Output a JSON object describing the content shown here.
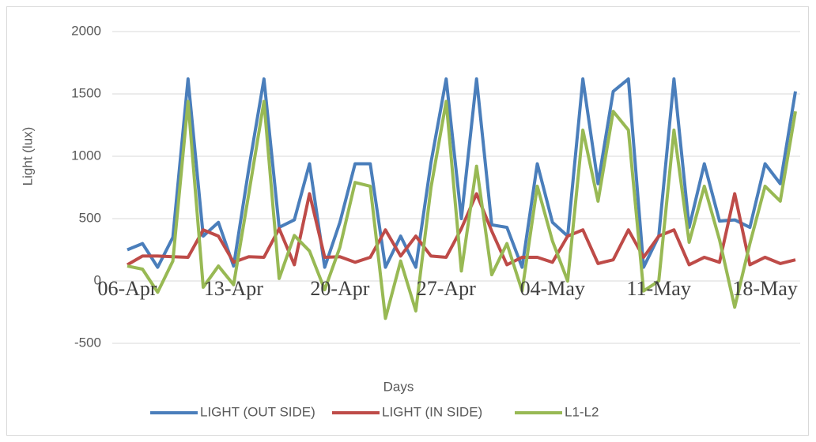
{
  "chart_data": {
    "type": "line",
    "x_label": "Days",
    "y_label": "Light (lux)",
    "categories": [
      "06-Apr",
      null,
      null,
      null,
      null,
      null,
      null,
      "13-Apr",
      null,
      null,
      null,
      null,
      null,
      null,
      "20-Apr",
      null,
      null,
      null,
      null,
      null,
      null,
      "27-Apr",
      null,
      null,
      null,
      null,
      null,
      null,
      "04-May",
      null,
      null,
      null,
      null,
      null,
      null,
      "11-May",
      null,
      null,
      null,
      null,
      null,
      null,
      "18-May",
      null,
      null
    ],
    "series": [
      {
        "name": "LIGHT (OUT SIDE)",
        "color": "#4a7ebb",
        "values": [
          250,
          300,
          110,
          350,
          1620,
          360,
          470,
          120,
          900,
          1620,
          430,
          490,
          940,
          110,
          470,
          940,
          940,
          110,
          360,
          110,
          950,
          1620,
          500,
          1620,
          450,
          430,
          110,
          940,
          470,
          360,
          1620,
          780,
          1520,
          1620,
          110,
          360,
          1620,
          430,
          940,
          480,
          490,
          430,
          940,
          780,
          1520
        ]
      },
      {
        "name": "LIGHT (IN SIDE)",
        "color": "#be4b48",
        "values": [
          130,
          200,
          200,
          195,
          190,
          410,
          360,
          150,
          195,
          190,
          420,
          130,
          700,
          190,
          195,
          150,
          190,
          410,
          200,
          360,
          200,
          190,
          420,
          700,
          400,
          130,
          190,
          190,
          150,
          360,
          410,
          140,
          170,
          410,
          190,
          360,
          410,
          130,
          190,
          150,
          700,
          130,
          190,
          140,
          170
        ]
      },
      {
        "name": "L1-L2",
        "color": "#98b954",
        "values": [
          120,
          95,
          -90,
          160,
          1440,
          -50,
          120,
          -30,
          700,
          1440,
          20,
          365,
          240,
          -70,
          270,
          790,
          760,
          -300,
          160,
          -240,
          750,
          1440,
          80,
          920,
          50,
          300,
          -80,
          760,
          320,
          0,
          1210,
          640,
          1360,
          1210,
          -80,
          0,
          1210,
          310,
          760,
          330,
          -210,
          300,
          760,
          640,
          1360
        ]
      }
    ],
    "ylim": [
      -500,
      2000
    ],
    "yticks": [
      -500,
      0,
      500,
      1000,
      1500,
      2000
    ],
    "grid": true,
    "legend": "bottom"
  }
}
